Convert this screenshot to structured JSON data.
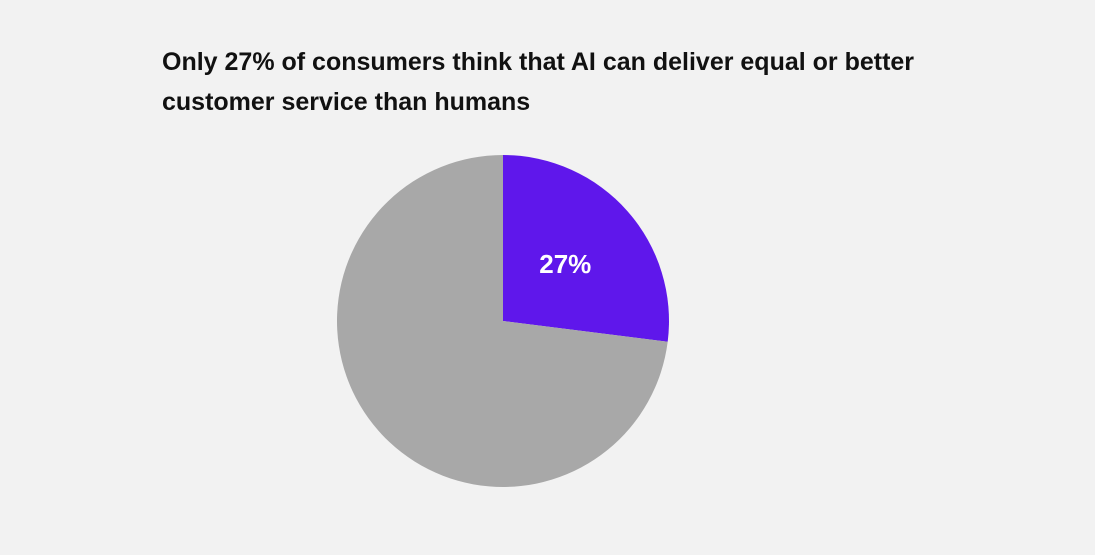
{
  "chart_data": {
    "type": "pie",
    "title": "Only 27% of consumers think that AI can deliver equal or better customer service than humans",
    "values": [
      27,
      73
    ],
    "value_labels": [
      "27%",
      null
    ],
    "colors": [
      "#5f17eb",
      "#a8a8a8"
    ]
  }
}
